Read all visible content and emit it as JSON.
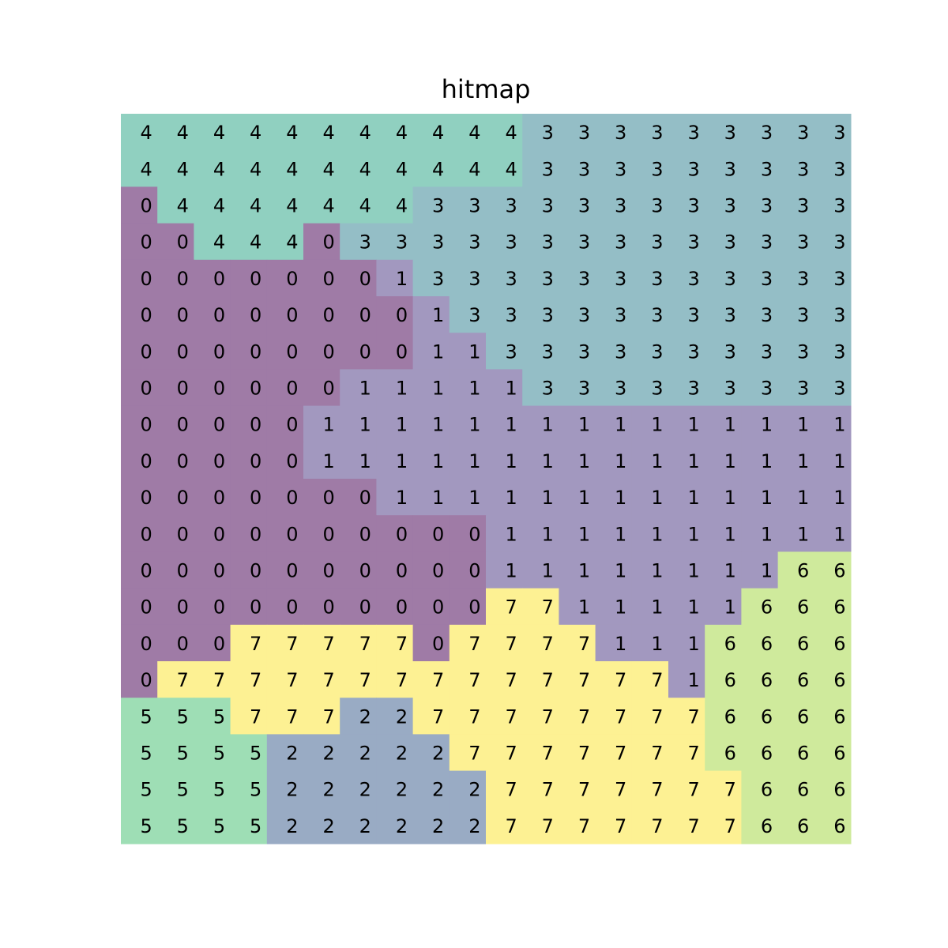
{
  "chart_data": {
    "type": "heatmap",
    "title": "hitmap",
    "xlabel": "",
    "ylabel": "",
    "grid": false,
    "rows": 20,
    "cols": 20,
    "colors": {
      "0": "#9f7ba6",
      "1": "#a298bf",
      "2": "#99abc4",
      "3": "#94bec6",
      "4": "#90d0c0",
      "5": "#9edeb5",
      "6": "#cfea9c",
      "7": "#fdf193"
    },
    "values": [
      [
        4,
        4,
        4,
        4,
        4,
        4,
        4,
        4,
        4,
        4,
        4,
        3,
        3,
        3,
        3,
        3,
        3,
        3,
        3,
        3
      ],
      [
        4,
        4,
        4,
        4,
        4,
        4,
        4,
        4,
        4,
        4,
        4,
        3,
        3,
        3,
        3,
        3,
        3,
        3,
        3,
        3
      ],
      [
        0,
        4,
        4,
        4,
        4,
        4,
        4,
        4,
        3,
        3,
        3,
        3,
        3,
        3,
        3,
        3,
        3,
        3,
        3,
        3
      ],
      [
        0,
        0,
        4,
        4,
        4,
        0,
        3,
        3,
        3,
        3,
        3,
        3,
        3,
        3,
        3,
        3,
        3,
        3,
        3,
        3
      ],
      [
        0,
        0,
        0,
        0,
        0,
        0,
        0,
        1,
        3,
        3,
        3,
        3,
        3,
        3,
        3,
        3,
        3,
        3,
        3,
        3
      ],
      [
        0,
        0,
        0,
        0,
        0,
        0,
        0,
        0,
        1,
        3,
        3,
        3,
        3,
        3,
        3,
        3,
        3,
        3,
        3,
        3
      ],
      [
        0,
        0,
        0,
        0,
        0,
        0,
        0,
        0,
        1,
        1,
        3,
        3,
        3,
        3,
        3,
        3,
        3,
        3,
        3,
        3
      ],
      [
        0,
        0,
        0,
        0,
        0,
        0,
        1,
        1,
        1,
        1,
        1,
        3,
        3,
        3,
        3,
        3,
        3,
        3,
        3,
        3
      ],
      [
        0,
        0,
        0,
        0,
        0,
        1,
        1,
        1,
        1,
        1,
        1,
        1,
        1,
        1,
        1,
        1,
        1,
        1,
        1,
        1
      ],
      [
        0,
        0,
        0,
        0,
        0,
        1,
        1,
        1,
        1,
        1,
        1,
        1,
        1,
        1,
        1,
        1,
        1,
        1,
        1,
        1
      ],
      [
        0,
        0,
        0,
        0,
        0,
        0,
        0,
        1,
        1,
        1,
        1,
        1,
        1,
        1,
        1,
        1,
        1,
        1,
        1,
        1
      ],
      [
        0,
        0,
        0,
        0,
        0,
        0,
        0,
        0,
        0,
        0,
        1,
        1,
        1,
        1,
        1,
        1,
        1,
        1,
        1,
        1
      ],
      [
        0,
        0,
        0,
        0,
        0,
        0,
        0,
        0,
        0,
        0,
        1,
        1,
        1,
        1,
        1,
        1,
        1,
        1,
        6,
        6
      ],
      [
        0,
        0,
        0,
        0,
        0,
        0,
        0,
        0,
        0,
        0,
        7,
        7,
        1,
        1,
        1,
        1,
        1,
        6,
        6,
        6
      ],
      [
        0,
        0,
        0,
        7,
        7,
        7,
        7,
        7,
        0,
        7,
        7,
        7,
        7,
        1,
        1,
        1,
        6,
        6,
        6,
        6
      ],
      [
        0,
        7,
        7,
        7,
        7,
        7,
        7,
        7,
        7,
        7,
        7,
        7,
        7,
        7,
        7,
        1,
        6,
        6,
        6,
        6
      ],
      [
        5,
        5,
        5,
        7,
        7,
        7,
        2,
        2,
        7,
        7,
        7,
        7,
        7,
        7,
        7,
        7,
        6,
        6,
        6,
        6
      ],
      [
        5,
        5,
        5,
        5,
        2,
        2,
        2,
        2,
        2,
        7,
        7,
        7,
        7,
        7,
        7,
        7,
        6,
        6,
        6,
        6
      ],
      [
        5,
        5,
        5,
        5,
        2,
        2,
        2,
        2,
        2,
        2,
        7,
        7,
        7,
        7,
        7,
        7,
        7,
        6,
        6,
        6
      ],
      [
        5,
        5,
        5,
        5,
        2,
        2,
        2,
        2,
        2,
        2,
        7,
        7,
        7,
        7,
        7,
        7,
        7,
        6,
        6,
        6
      ]
    ]
  }
}
